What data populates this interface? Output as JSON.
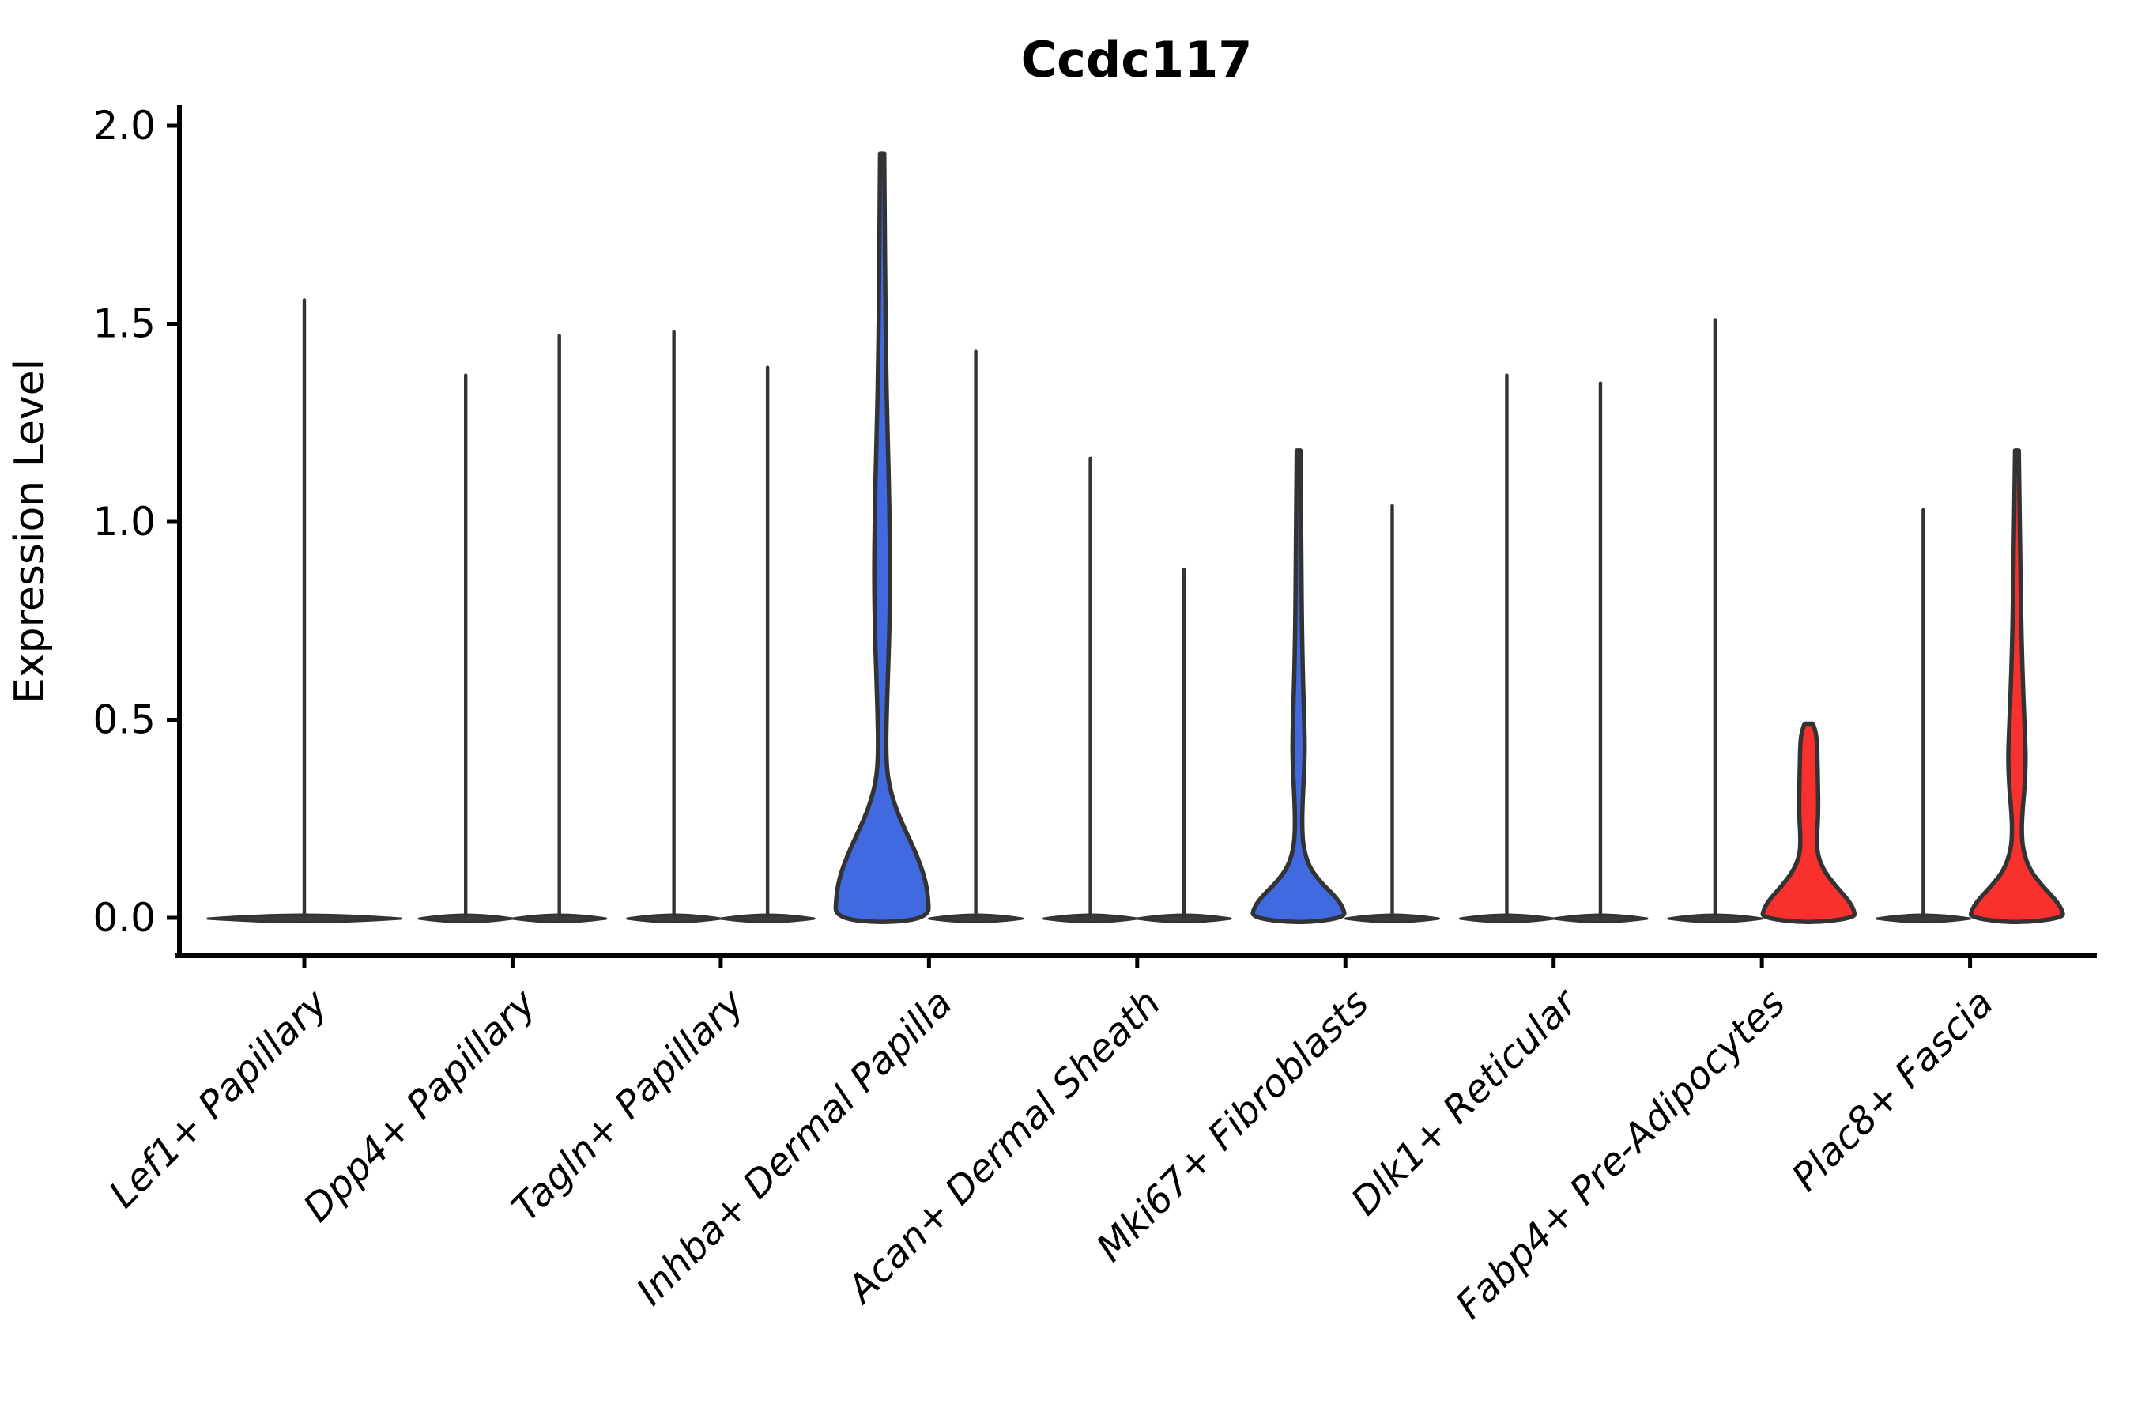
{
  "chart_data": {
    "type": "violin",
    "title": "Ccdc117",
    "ylabel": "Expression Level",
    "ylim": [
      0,
      2.0
    ],
    "yticks": [
      "0.0",
      "0.5",
      "1.0",
      "1.5",
      "2.0"
    ],
    "legend_position": "none",
    "grid": false,
    "colors": {
      "highlight_blue": "#4169E0",
      "highlight_red": "#F8312E",
      "outline": "#333333",
      "axis": "#000000"
    },
    "categories": [
      "Lef1+ Papillary",
      "Dpp4+ Papillary",
      "Tagln+ Papillary",
      "Inhba+ Dermal Papilla",
      "Acan+ Dermal Sheath",
      "Mki67+ Fibroblasts",
      "Dlk1+ Reticular",
      "Fabp4+ Pre-Adipocytes",
      "Plac8+ Fascia"
    ],
    "groups": [
      {
        "category": "Lef1+ Papillary",
        "violins": [
          {
            "side": "center",
            "max": 1.56,
            "style": "flat"
          }
        ]
      },
      {
        "category": "Dpp4+ Papillary",
        "violins": [
          {
            "side": "left",
            "max": 1.37,
            "style": "flat"
          },
          {
            "side": "right",
            "max": 1.47,
            "style": "flat"
          }
        ]
      },
      {
        "category": "Tagln+ Papillary",
        "violins": [
          {
            "side": "left",
            "max": 1.48,
            "style": "flat"
          },
          {
            "side": "right",
            "max": 1.39,
            "style": "flat"
          }
        ]
      },
      {
        "category": "Inhba+ Dermal Papilla",
        "violins": [
          {
            "side": "left",
            "max": 1.93,
            "style": "shaped",
            "color": "blue",
            "profile": [
              [
                1.93,
                0.045
              ],
              [
                1.75,
                0.055
              ],
              [
                1.55,
                0.07
              ],
              [
                1.4,
                0.085
              ],
              [
                1.25,
                0.11
              ],
              [
                1.1,
                0.145
              ],
              [
                0.95,
                0.165
              ],
              [
                0.85,
                0.17
              ],
              [
                0.72,
                0.155
              ],
              [
                0.6,
                0.12
              ],
              [
                0.5,
                0.095
              ],
              [
                0.42,
                0.085
              ],
              [
                0.35,
                0.12
              ],
              [
                0.28,
                0.28
              ],
              [
                0.22,
                0.5
              ],
              [
                0.16,
                0.74
              ],
              [
                0.1,
                0.92
              ],
              [
                0.05,
                0.99
              ],
              [
                0.0,
                1.0
              ]
            ]
          },
          {
            "side": "right",
            "max": 1.43,
            "style": "flat"
          }
        ]
      },
      {
        "category": "Acan+ Dermal Sheath",
        "violins": [
          {
            "side": "left",
            "max": 1.16,
            "style": "flat"
          },
          {
            "side": "right",
            "max": 0.88,
            "style": "flat"
          }
        ]
      },
      {
        "category": "Mki67+ Fibroblasts",
        "violins": [
          {
            "side": "left",
            "max": 1.18,
            "style": "shaped",
            "color": "blue",
            "profile": [
              [
                1.18,
                0.04
              ],
              [
                1.05,
                0.05
              ],
              [
                0.9,
                0.06
              ],
              [
                0.75,
                0.07
              ],
              [
                0.62,
                0.09
              ],
              [
                0.52,
                0.115
              ],
              [
                0.43,
                0.135
              ],
              [
                0.36,
                0.115
              ],
              [
                0.29,
                0.085
              ],
              [
                0.23,
                0.075
              ],
              [
                0.18,
                0.1
              ],
              [
                0.13,
                0.22
              ],
              [
                0.09,
                0.47
              ],
              [
                0.055,
                0.78
              ],
              [
                0.025,
                0.96
              ],
              [
                0.0,
                1.0
              ]
            ]
          },
          {
            "side": "right",
            "max": 1.04,
            "style": "flat"
          }
        ]
      },
      {
        "category": "Dlk1+ Reticular",
        "violins": [
          {
            "side": "left",
            "max": 1.37,
            "style": "flat"
          },
          {
            "side": "right",
            "max": 1.35,
            "style": "flat"
          }
        ]
      },
      {
        "category": "Fabp4+ Pre-Adipocytes",
        "violins": [
          {
            "side": "left",
            "max": 1.51,
            "style": "flat"
          },
          {
            "side": "right",
            "max": 0.49,
            "style": "shaped",
            "color": "red",
            "profile": [
              [
                0.49,
                0.09
              ],
              [
                0.47,
                0.15
              ],
              [
                0.44,
                0.18
              ],
              [
                0.39,
                0.19
              ],
              [
                0.33,
                0.2
              ],
              [
                0.28,
                0.205
              ],
              [
                0.24,
                0.195
              ],
              [
                0.2,
                0.175
              ],
              [
                0.16,
                0.19
              ],
              [
                0.12,
                0.32
              ],
              [
                0.08,
                0.58
              ],
              [
                0.045,
                0.85
              ],
              [
                0.02,
                0.97
              ],
              [
                0.0,
                1.0
              ]
            ]
          }
        ]
      },
      {
        "category": "Plac8+ Fascia",
        "violins": [
          {
            "side": "left",
            "max": 1.03,
            "style": "flat"
          },
          {
            "side": "right",
            "max": 1.18,
            "style": "shaped",
            "color": "red",
            "profile": [
              [
                1.18,
                0.04
              ],
              [
                1.05,
                0.055
              ],
              [
                0.92,
                0.07
              ],
              [
                0.8,
                0.085
              ],
              [
                0.68,
                0.105
              ],
              [
                0.57,
                0.135
              ],
              [
                0.47,
                0.17
              ],
              [
                0.4,
                0.19
              ],
              [
                0.33,
                0.165
              ],
              [
                0.27,
                0.12
              ],
              [
                0.22,
                0.1
              ],
              [
                0.17,
                0.13
              ],
              [
                0.12,
                0.28
              ],
              [
                0.08,
                0.55
              ],
              [
                0.045,
                0.83
              ],
              [
                0.02,
                0.97
              ],
              [
                0.0,
                1.0
              ]
            ]
          }
        ]
      }
    ]
  }
}
